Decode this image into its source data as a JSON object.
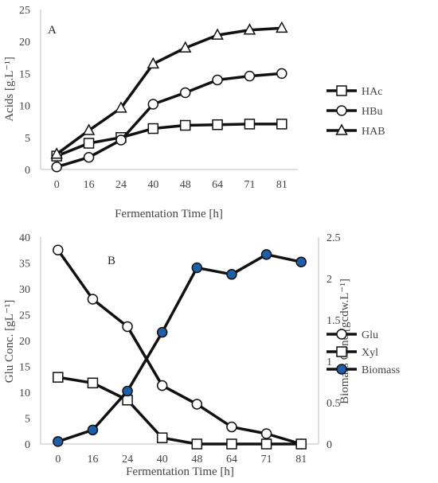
{
  "colors": {
    "line": "#111111",
    "marker_fill": "#ffffff",
    "biomass_fill": "#1f5fa8",
    "axis": "#bfbfbf",
    "text": "#444444"
  },
  "chart_data": [
    {
      "type": "line",
      "panel_label": "A",
      "categories": [
        "0",
        "16",
        "24",
        "40",
        "48",
        "64",
        "71",
        "81"
      ],
      "xlabel": "Fermentation Time [h]",
      "ylabel": "Acids [g.L⁻¹]",
      "ylim": [
        0,
        25
      ],
      "yticks": [
        "0",
        "5",
        "10",
        "15",
        "20",
        "25"
      ],
      "legend_position": "right",
      "grid": false,
      "series": [
        {
          "name": "HAc",
          "marker": "square",
          "values": [
            2.1,
            4.1,
            5.0,
            6.4,
            6.9,
            7.0,
            7.1,
            7.1
          ]
        },
        {
          "name": "HBu",
          "marker": "circle",
          "values": [
            0.4,
            1.9,
            4.6,
            10.2,
            12.0,
            14.0,
            14.6,
            15.0
          ]
        },
        {
          "name": "HAB",
          "marker": "triangle",
          "values": [
            2.4,
            6.1,
            9.6,
            16.5,
            19.0,
            21.0,
            21.8,
            22.1
          ]
        }
      ]
    },
    {
      "type": "line",
      "panel_label": "B",
      "categories": [
        "0",
        "16",
        "24",
        "40",
        "48",
        "64",
        "71",
        "81"
      ],
      "xlabel": "Fermentation Time [h]",
      "ylabel": "Glu Conc. [gL⁻¹]",
      "y2label": "Biomass Conc [gcdw.L⁻¹]",
      "ylim": [
        0,
        40
      ],
      "y2lim": [
        0,
        2.5
      ],
      "yticks": [
        "0",
        "5",
        "10",
        "15",
        "20",
        "25",
        "30",
        "35",
        "40"
      ],
      "y2ticks": [
        "0",
        "0.5",
        "1",
        "1.5",
        "2",
        "2.5"
      ],
      "legend_position": "right",
      "grid": false,
      "series": [
        {
          "name": "Glu",
          "marker": "circle",
          "axis": "left",
          "values": [
            37.5,
            28.0,
            22.7,
            11.3,
            7.7,
            3.3,
            2.0,
            0.0
          ]
        },
        {
          "name": "Xyl",
          "marker": "square",
          "axis": "left",
          "values": [
            12.9,
            11.8,
            8.5,
            1.2,
            0.0,
            0.0,
            0.0,
            0.0
          ]
        },
        {
          "name": "Biomass",
          "marker": "filled-circle",
          "axis": "right",
          "values": [
            0.03,
            0.17,
            0.64,
            1.35,
            2.13,
            2.05,
            2.29,
            2.2
          ]
        }
      ]
    }
  ]
}
